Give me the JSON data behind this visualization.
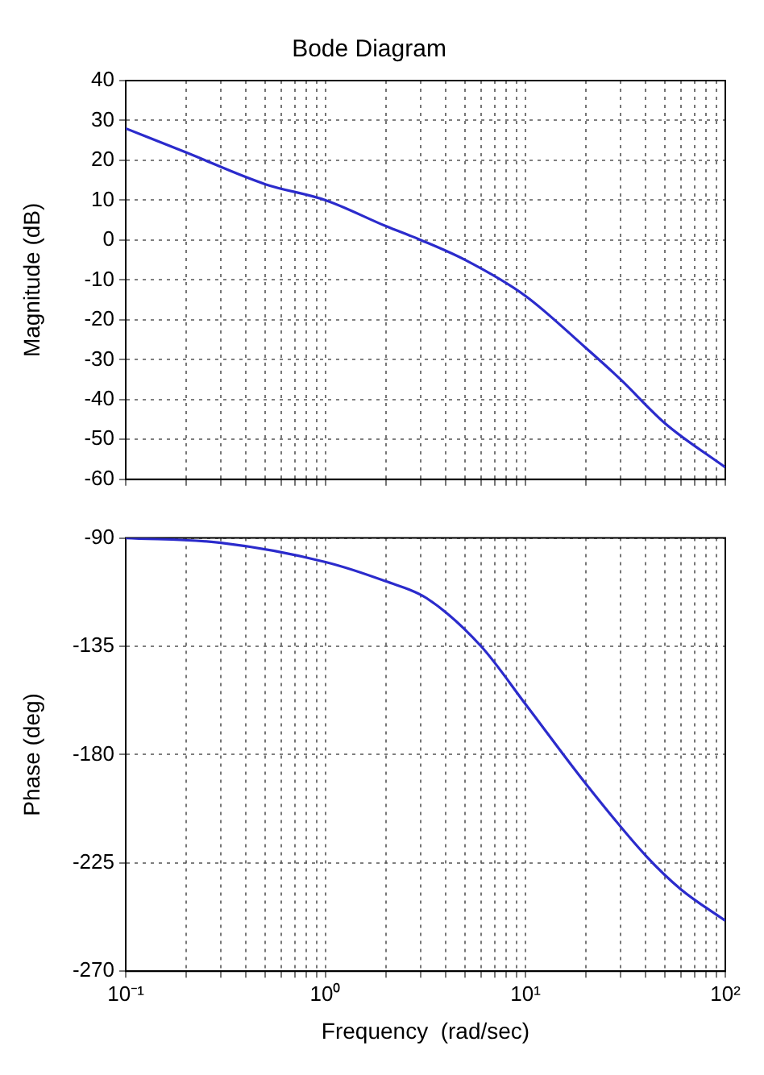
{
  "chart_data": [
    {
      "type": "line",
      "title": "Bode Diagram",
      "ylabel": "Magnitude (dB)",
      "log": "x",
      "grid": true,
      "marker": "none",
      "tick_labels": "y",
      "xlim": [
        0.1,
        100
      ],
      "xticks": [
        {
          "value": 0.1,
          "label": null
        },
        {
          "value": 0.2,
          "label": null
        },
        {
          "value": 0.3,
          "label": null
        },
        {
          "value": 0.4,
          "label": null
        },
        {
          "value": 0.5,
          "label": null
        },
        {
          "value": 0.6,
          "label": null
        },
        {
          "value": 0.7,
          "label": null
        },
        {
          "value": 0.8,
          "label": null
        },
        {
          "value": 0.9,
          "label": null
        },
        {
          "value": 1,
          "label": null
        },
        {
          "value": 2,
          "label": null
        },
        {
          "value": 3,
          "label": null
        },
        {
          "value": 4,
          "label": null
        },
        {
          "value": 5,
          "label": null
        },
        {
          "value": 6,
          "label": null
        },
        {
          "value": 7,
          "label": null
        },
        {
          "value": 8,
          "label": null
        },
        {
          "value": 9,
          "label": null
        },
        {
          "value": 10,
          "label": null
        },
        {
          "value": 20,
          "label": null
        },
        {
          "value": 30,
          "label": null
        },
        {
          "value": 40,
          "label": null
        },
        {
          "value": 50,
          "label": null
        },
        {
          "value": 60,
          "label": null
        },
        {
          "value": 70,
          "label": null
        },
        {
          "value": 80,
          "label": null
        },
        {
          "value": 90,
          "label": null
        },
        {
          "value": 100,
          "label": null
        }
      ],
      "ylim": [
        -60,
        40
      ],
      "yticks": [
        -60,
        -50,
        -40,
        -30,
        -20,
        -10,
        0,
        10,
        20,
        30,
        40
      ],
      "x": [
        0.1,
        0.2,
        0.5,
        1,
        2,
        3,
        5,
        10,
        20,
        30,
        50,
        100
      ],
      "series": [
        {
          "color": "#2b2bcc",
          "values": [
            28,
            22,
            14,
            10,
            3.5,
            0,
            -5,
            -14,
            -27,
            -35,
            -46,
            -57
          ]
        }
      ]
    },
    {
      "type": "line",
      "xlabel": "Frequency  (rad/sec)",
      "ylabel": "Phase (deg)",
      "log": "x",
      "grid": true,
      "marker": "none",
      "xlim": [
        0.1,
        100
      ],
      "xticks": [
        {
          "value": 0.1,
          "label": "10⁻¹"
        },
        {
          "value": 0.2,
          "label": null
        },
        {
          "value": 0.3,
          "label": null
        },
        {
          "value": 0.4,
          "label": null
        },
        {
          "value": 0.5,
          "label": null
        },
        {
          "value": 0.6,
          "label": null
        },
        {
          "value": 0.7,
          "label": null
        },
        {
          "value": 0.8,
          "label": null
        },
        {
          "value": 0.9,
          "label": null
        },
        {
          "value": 1,
          "label": "10⁰"
        },
        {
          "value": 2,
          "label": null
        },
        {
          "value": 3,
          "label": null
        },
        {
          "value": 4,
          "label": null
        },
        {
          "value": 5,
          "label": null
        },
        {
          "value": 6,
          "label": null
        },
        {
          "value": 7,
          "label": null
        },
        {
          "value": 8,
          "label": null
        },
        {
          "value": 9,
          "label": null
        },
        {
          "value": 10,
          "label": "10¹"
        },
        {
          "value": 20,
          "label": null
        },
        {
          "value": 30,
          "label": null
        },
        {
          "value": 40,
          "label": null
        },
        {
          "value": 50,
          "label": null
        },
        {
          "value": 60,
          "label": null
        },
        {
          "value": 70,
          "label": null
        },
        {
          "value": 80,
          "label": null
        },
        {
          "value": 90,
          "label": null
        },
        {
          "value": 100,
          "label": "10²"
        }
      ],
      "ylim": [
        -270,
        -90
      ],
      "yticks": [
        -270,
        -225,
        -180,
        -135,
        -90
      ],
      "x": [
        0.1,
        0.3,
        1,
        2,
        3.2,
        6,
        10,
        20,
        40,
        60,
        100
      ],
      "series": [
        {
          "color": "#2b2bcc",
          "values": [
            -90,
            -92,
            -100,
            -108,
            -115,
            -135,
            -159,
            -192,
            -222,
            -236,
            -249
          ]
        }
      ]
    }
  ]
}
